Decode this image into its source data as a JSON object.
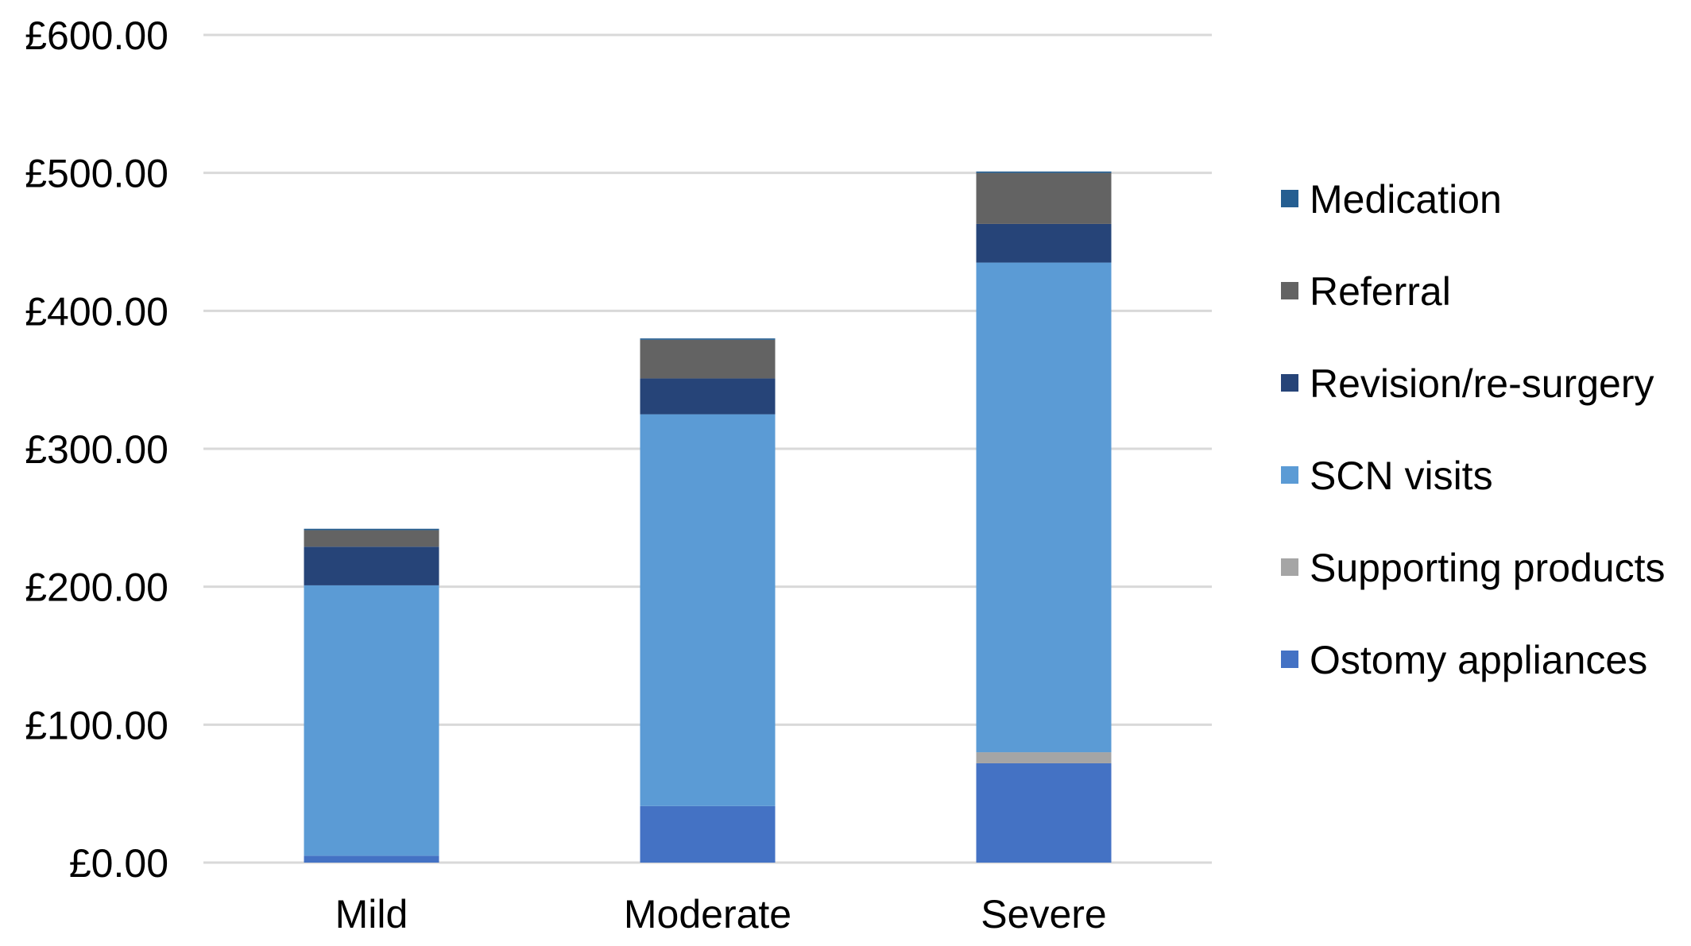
{
  "chart_data": {
    "type": "bar",
    "stacked": true,
    "categories": [
      "Mild",
      "Moderate",
      "Severe"
    ],
    "series": [
      {
        "name": "Ostomy appliances",
        "color": "#4472C4",
        "values": [
          5,
          41,
          72
        ]
      },
      {
        "name": "Supporting products",
        "color": "#A5A5A5",
        "values": [
          0,
          0,
          8
        ]
      },
      {
        "name": "SCN visits",
        "color": "#5B9BD5",
        "values": [
          196,
          284,
          355
        ]
      },
      {
        "name": "Revision/re-surgery",
        "color": "#264478",
        "values": [
          28,
          26,
          28
        ]
      },
      {
        "name": "Referral",
        "color": "#636363",
        "values": [
          12,
          28,
          37
        ]
      },
      {
        "name": "Medication",
        "color": "#255E91",
        "values": [
          1,
          1,
          1
        ]
      }
    ],
    "legend_order": [
      "Medication",
      "Referral",
      "Revision/re-surgery",
      "SCN visits",
      "Supporting products",
      "Ostomy appliances"
    ],
    "y_ticks": [
      0,
      100,
      200,
      300,
      400,
      500,
      600
    ],
    "y_tick_labels": [
      "£0.00",
      "£100.00",
      "£200.00",
      "£300.00",
      "£400.00",
      "£500.00",
      "£600.00"
    ],
    "ylim": [
      0,
      600
    ],
    "grid": true,
    "legend_position": "right",
    "gridline_color": "#D9D9D9"
  }
}
